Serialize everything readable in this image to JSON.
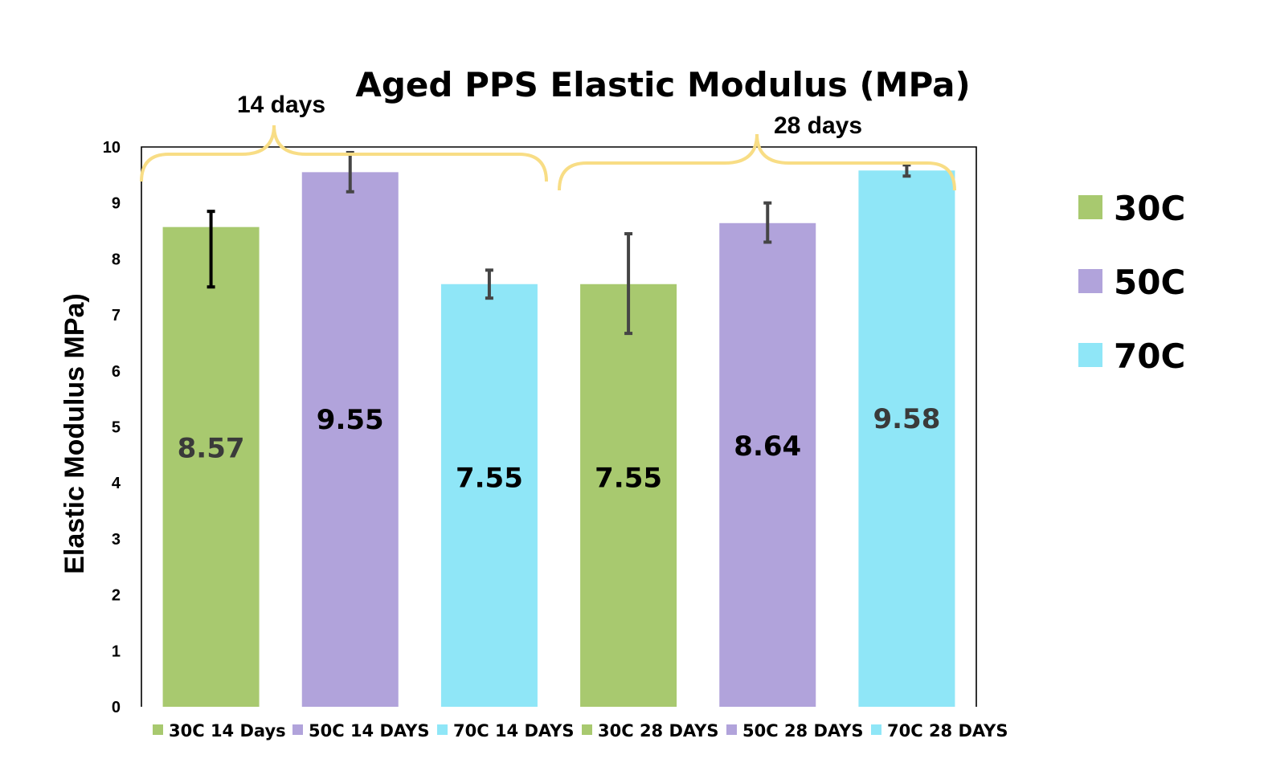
{
  "chart_data": {
    "type": "bar",
    "title": "Aged PPS Elastic Modulus (MPa)",
    "ylabel": "Elastic Modulus MPa)",
    "xlabel": "",
    "ylim": [
      0,
      10
    ],
    "yticks": [
      "0",
      "1",
      "2",
      "3",
      "4",
      "5",
      "6",
      "7",
      "8",
      "9",
      "10"
    ],
    "grid": false,
    "categories": [
      "30C 14 Days",
      "50C 14 DAYS",
      "70C 14 DAYS",
      "30C 28 DAYS",
      "50C 28 DAYS",
      "70C 28 DAYS"
    ],
    "values": [
      8.57,
      9.55,
      7.55,
      7.55,
      8.64,
      9.58
    ],
    "data_labels": [
      "8.57",
      "9.55",
      "7.55",
      "7.55",
      "8.64",
      "9.58"
    ],
    "error_low": [
      7.5,
      9.2,
      7.3,
      6.67,
      8.3,
      9.48
    ],
    "error_high": [
      8.85,
      9.9,
      7.8,
      8.45,
      9.0,
      9.68
    ],
    "colors": [
      "#a8c96f",
      "#b1a3db",
      "#8fe6f7",
      "#a8c96f",
      "#b1a3db",
      "#8fe6f7"
    ],
    "label_colors": [
      "#3a3a3a",
      "#000000",
      "#000000",
      "#000000",
      "#000000",
      "#3a3a3a"
    ],
    "errorbar_colors": [
      "#000000",
      "#454545",
      "#454545",
      "#454545",
      "#454545",
      "#454545"
    ],
    "groups": [
      {
        "label": "14 days",
        "bars": [
          0,
          1,
          2
        ],
        "brace_color": "#f8dd85"
      },
      {
        "label": "28 days",
        "bars": [
          3,
          4,
          5
        ],
        "brace_color": "#f8dd85"
      }
    ],
    "legend": [
      {
        "name": "30C",
        "color": "#a8c96f"
      },
      {
        "name": "50C",
        "color": "#b1a3db"
      },
      {
        "name": "70C",
        "color": "#8fe6f7"
      }
    ],
    "legend_position": "right"
  }
}
